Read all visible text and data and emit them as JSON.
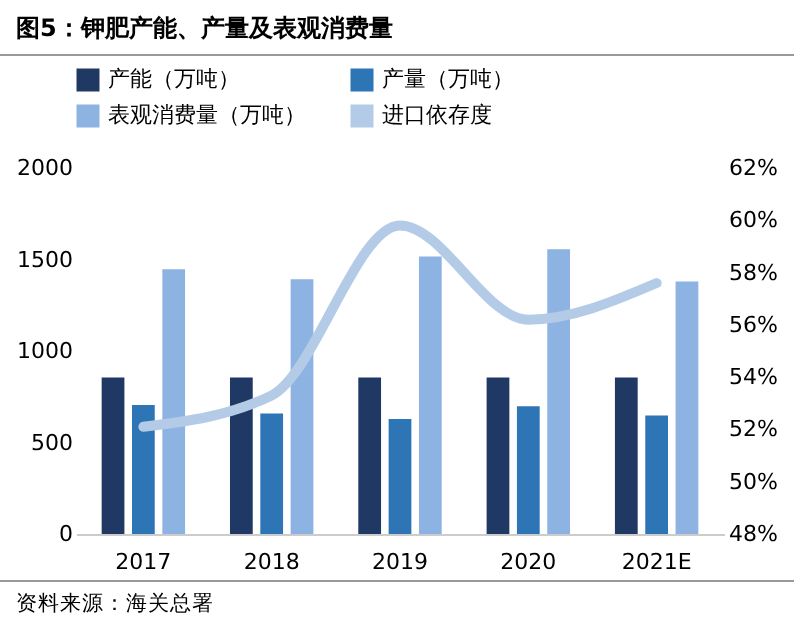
{
  "chart_data": {
    "type": "bar",
    "title": "图5：钾肥产能、产量及表观消费量",
    "categories": [
      "2017",
      "2018",
      "2019",
      "2020",
      "2021E"
    ],
    "series": [
      {
        "name": "产能（万吨）",
        "color": "#1f3864",
        "values": [
          855,
          855,
          855,
          855,
          855
        ]
      },
      {
        "name": "产量（万吨）",
        "color": "#2e75b6",
        "values": [
          705,
          658,
          628,
          698,
          647
        ]
      },
      {
        "name": "表观消费量（万吨）",
        "color": "#8db3e2",
        "values": [
          1447,
          1392,
          1517,
          1556,
          1380
        ]
      },
      {
        "name": "进口依存度",
        "type": "line",
        "axis": "y2",
        "color": "#b4cbe8",
        "values": [
          52.1,
          53.3,
          59.8,
          56.2,
          57.6
        ]
      }
    ],
    "ylim": [
      0,
      2000
    ],
    "yticks": [
      0,
      500,
      1000,
      1500,
      2000
    ],
    "y2lim": [
      48,
      62
    ],
    "y2ticks": [
      {
        "value": 48,
        "label": "48%"
      },
      {
        "value": 50,
        "label": "50%"
      },
      {
        "value": 52,
        "label": "52%"
      },
      {
        "value": 54,
        "label": "54%"
      },
      {
        "value": 56,
        "label": "56%"
      },
      {
        "value": 58,
        "label": "58%"
      },
      {
        "value": 60,
        "label": "60%"
      },
      {
        "value": 62,
        "label": "62%"
      }
    ],
    "grid": false,
    "legend": "top",
    "annotations": [
      "资料来源：海关总署"
    ]
  }
}
